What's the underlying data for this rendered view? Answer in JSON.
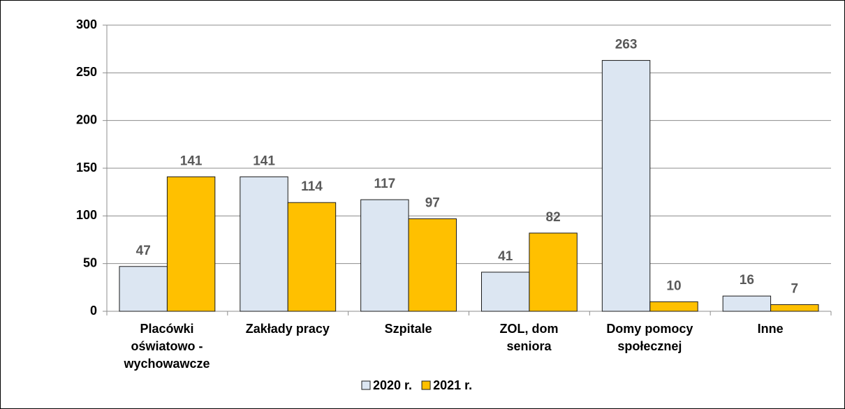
{
  "chart_data": {
    "type": "bar",
    "categories": [
      "Placówki\noświatowo -\nwychowawcze",
      "Zakłady pracy",
      "Szpitale",
      "ZOL, dom\nseniora",
      "Domy pomocy\nspołecznej",
      "Inne"
    ],
    "series": [
      {
        "name": "2020 r.",
        "color": "#dce6f2",
        "values": [
          47,
          141,
          117,
          41,
          263,
          16
        ]
      },
      {
        "name": "2021 r.",
        "color": "#ffc000",
        "values": [
          141,
          114,
          97,
          82,
          10,
          7
        ]
      }
    ],
    "ylim": [
      0,
      300
    ],
    "yticks": [
      0,
      50,
      100,
      150,
      200,
      250,
      300
    ],
    "grid": true,
    "legend": "bottom"
  }
}
